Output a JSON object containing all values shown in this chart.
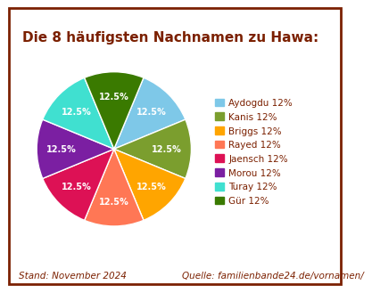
{
  "title": "Die 8 häufigsten Nachnamen zu Hawa:",
  "title_color": "#7B2000",
  "title_fontsize": 11,
  "labels": [
    "Aydogdu 12%",
    "Kanis 12%",
    "Briggs 12%",
    "Rayed 12%",
    "Jaensch 12%",
    "Morou 12%",
    "Turay 12%",
    "Gür 12%"
  ],
  "values": [
    12.5,
    12.5,
    12.5,
    12.5,
    12.5,
    12.5,
    12.5,
    12.5
  ],
  "colors": [
    "#7EC8E8",
    "#7B9E2E",
    "#FFA500",
    "#FF7755",
    "#DD1155",
    "#7B1FA2",
    "#40E0D0",
    "#3A7A00"
  ],
  "shadow_colors": [
    "#5A9AC0",
    "#5A7520",
    "#CC8400",
    "#CC5533",
    "#AA0033",
    "#5A1577",
    "#20B0A0",
    "#255500"
  ],
  "footer_left": "Stand: November 2024",
  "footer_right": "Quelle: familienbande24.de/vornamen/",
  "footer_color": "#7B2000",
  "footer_fontsize": 7.5,
  "background_color": "#FFFFFF",
  "border_color": "#7B2000",
  "legend_fontsize": 7.5,
  "startangle": 67.5,
  "pct_fontsize": 7,
  "pct_distance": 0.68
}
